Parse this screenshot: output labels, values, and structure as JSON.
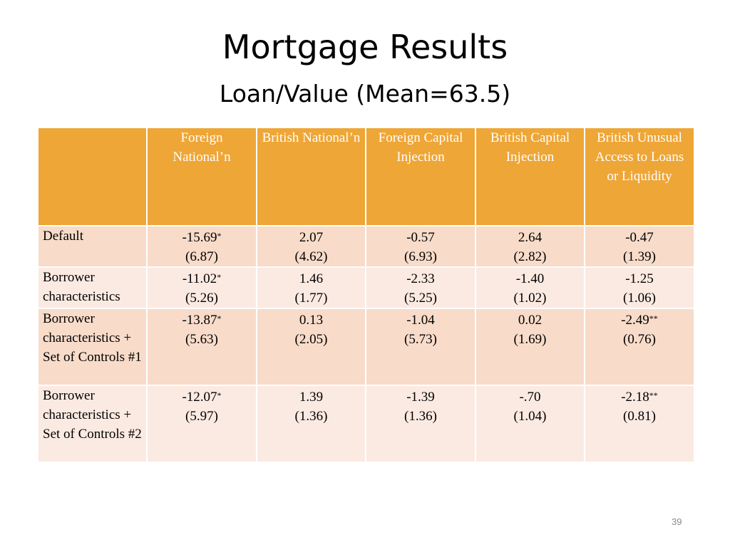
{
  "slide": {
    "title": "Mortgage Results",
    "subtitle": "Loan/Value (Mean=63.5)",
    "page_number": "39"
  },
  "table": {
    "headers": [
      "",
      "Foreign National’n",
      "British National’n",
      "Foreign Capital Injection",
      "British Capital Injection",
      "British Unusual Access to Loans or Liquidity"
    ],
    "rows": [
      {
        "label": "Default",
        "cells": [
          {
            "coef": "-15.69",
            "stars": "*",
            "se": "(6.87)"
          },
          {
            "coef": "2.07",
            "stars": "",
            "se": "(4.62)"
          },
          {
            "coef": "-0.57",
            "stars": "",
            "se": "(6.93)"
          },
          {
            "coef": "2.64",
            "stars": "",
            "se": "(2.82)"
          },
          {
            "coef": "-0.47",
            "stars": "",
            "se": "(1.39)"
          }
        ]
      },
      {
        "label": "Borrower characteristics",
        "cells": [
          {
            "coef": "-11.02",
            "stars": "*",
            "se": "(5.26)"
          },
          {
            "coef": "1.46",
            "stars": "",
            "se": "(1.77)"
          },
          {
            "coef": "-2.33",
            "stars": "",
            "se": "(5.25)"
          },
          {
            "coef": "-1.40",
            "stars": "",
            "se": "(1.02)"
          },
          {
            "coef": "-1.25",
            "stars": "",
            "se": "(1.06)"
          }
        ]
      },
      {
        "label": "Borrower characteristics + Set of Controls #1",
        "cells": [
          {
            "coef": "-13.87",
            "stars": "*",
            "se": "(5.63)"
          },
          {
            "coef": "0.13",
            "stars": "",
            "se": "(2.05)"
          },
          {
            "coef": "-1.04",
            "stars": "",
            "se": "(5.73)"
          },
          {
            "coef": "0.02",
            "stars": "",
            "se": "(1.69)"
          },
          {
            "coef": "-2.49",
            "stars": "**",
            "se": "(0.76)"
          }
        ]
      },
      {
        "label": "Borrower characteristics + Set of Controls #2",
        "cells": [
          {
            "coef": "-12.07",
            "stars": "*",
            "se": "(5.97)"
          },
          {
            "coef": "1.39",
            "stars": "",
            "se": "(1.36)"
          },
          {
            "coef": "-1.39",
            "stars": "",
            "se": "(1.36)"
          },
          {
            "coef": "-.70",
            "stars": "",
            "se": "(1.04)"
          },
          {
            "coef": "-2.18",
            "stars": "**",
            "se": "(0.81)"
          }
        ]
      }
    ]
  },
  "colors": {
    "header_bg": "#eea637",
    "row_dark": "#f8dbc9",
    "row_light": "#fbeae2",
    "significant_red": "#e8251f"
  }
}
